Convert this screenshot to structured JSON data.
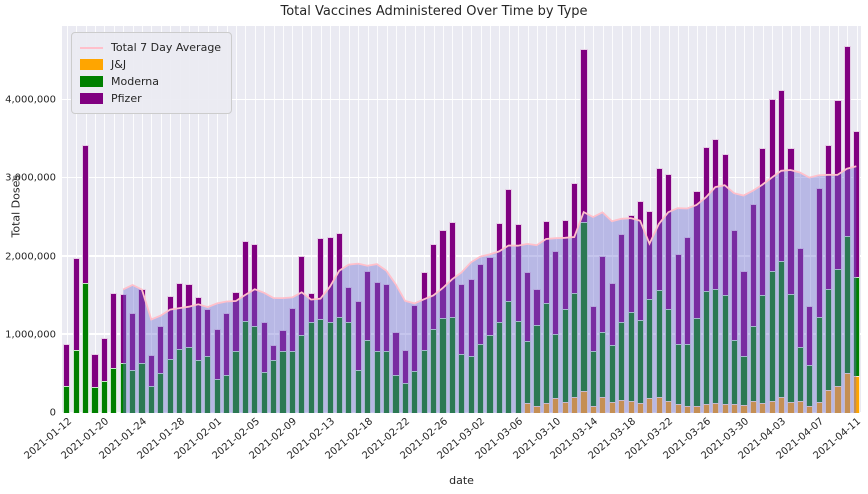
{
  "title": "Total Vaccines Administered Over Time by Type",
  "axes": {
    "x_label": "date",
    "y_label": "Total Doses",
    "y_max": 4950000,
    "y_ticks": [
      {
        "label": "0",
        "value": 0
      },
      {
        "label": "1,000,000",
        "value": 1000000
      },
      {
        "label": "2,000,000",
        "value": 2000000
      },
      {
        "label": "3,000,000",
        "value": 3000000
      },
      {
        "label": "4,000,000",
        "value": 4000000
      }
    ]
  },
  "legend": [
    {
      "label": "Total 7 Day Average",
      "color": "#ffc0cb",
      "shape": "line"
    },
    {
      "label": "J&J",
      "color": "#ffa500",
      "shape": "box"
    },
    {
      "label": "Moderna",
      "color": "#008000",
      "shape": "box"
    },
    {
      "label": "Pfizer",
      "color": "#800080",
      "shape": "box"
    }
  ],
  "colors": {
    "plot_bg": "#eaeaf2",
    "grid": "#ffffff",
    "avg_fill": "rgba(110,110,210,0.40)",
    "avg_line": "#ffc0cb"
  },
  "chart_data": {
    "type": "bar",
    "stacked": true,
    "title": "Total Vaccines Administered Over Time by Type",
    "xlabel": "date",
    "ylabel": "Total Doses",
    "ylim": [
      0,
      4950000
    ],
    "legend_position": "upper left",
    "grid": true,
    "tick_every": 4,
    "x": [
      "2021-01-12",
      "2021-01-14",
      "2021-01-16",
      "2021-01-18",
      "2021-01-20",
      "2021-01-21",
      "2021-01-22",
      "2021-01-23",
      "2021-01-24",
      "2021-01-25",
      "2021-01-26",
      "2021-01-27",
      "2021-01-28",
      "2021-01-29",
      "2021-01-30",
      "2021-01-31",
      "2021-02-01",
      "2021-02-02",
      "2021-02-03",
      "2021-02-04",
      "2021-02-05",
      "2021-02-06",
      "2021-02-07",
      "2021-02-08",
      "2021-02-09",
      "2021-02-10",
      "2021-02-11",
      "2021-02-12",
      "2021-02-13",
      "2021-02-15",
      "2021-02-16",
      "2021-02-17",
      "2021-02-18",
      "2021-02-19",
      "2021-02-20",
      "2021-02-21",
      "2021-02-22",
      "2021-02-23",
      "2021-02-24",
      "2021-02-25",
      "2021-02-26",
      "2021-02-27",
      "2021-02-28",
      "2021-03-01",
      "2021-03-02",
      "2021-03-03",
      "2021-03-04",
      "2021-03-05",
      "2021-03-06",
      "2021-03-07",
      "2021-03-08",
      "2021-03-09",
      "2021-03-10",
      "2021-03-11",
      "2021-03-12",
      "2021-03-13",
      "2021-03-14",
      "2021-03-15",
      "2021-03-16",
      "2021-03-17",
      "2021-03-18",
      "2021-03-19",
      "2021-03-20",
      "2021-03-21",
      "2021-03-22",
      "2021-03-23",
      "2021-03-24",
      "2021-03-25",
      "2021-03-26",
      "2021-03-27",
      "2021-03-28",
      "2021-03-29",
      "2021-03-30",
      "2021-03-31",
      "2021-04-01",
      "2021-04-02",
      "2021-04-03",
      "2021-04-04",
      "2021-04-05",
      "2021-04-06",
      "2021-04-07",
      "2021-04-08",
      "2021-04-09",
      "2021-04-10",
      "2021-04-11"
    ],
    "series": [
      {
        "name": "J&J",
        "color": "#ffa500",
        "values": [
          0,
          0,
          0,
          0,
          0,
          0,
          0,
          0,
          0,
          0,
          0,
          0,
          0,
          0,
          0,
          0,
          0,
          0,
          0,
          0,
          0,
          0,
          0,
          0,
          0,
          0,
          0,
          0,
          0,
          0,
          0,
          0,
          0,
          0,
          0,
          0,
          0,
          0,
          0,
          0,
          0,
          0,
          0,
          0,
          0,
          0,
          0,
          0,
          0,
          130000,
          90000,
          130000,
          190000,
          140000,
          200000,
          280000,
          90000,
          200000,
          140000,
          170000,
          150000,
          130000,
          190000,
          210000,
          150000,
          110000,
          90000,
          90000,
          110000,
          130000,
          110000,
          120000,
          100000,
          150000,
          130000,
          150000,
          210000,
          140000,
          150000,
          90000,
          140000,
          300000,
          340000,
          510000,
          470000
        ]
      },
      {
        "name": "Moderna",
        "color": "#008000",
        "values": [
          340000,
          810000,
          1660000,
          330000,
          410000,
          580000,
          640000,
          550000,
          640000,
          340000,
          510000,
          690000,
          820000,
          840000,
          680000,
          730000,
          440000,
          490000,
          790000,
          1180000,
          1110000,
          520000,
          680000,
          790000,
          790000,
          1000000,
          1170000,
          1200000,
          1160000,
          1230000,
          1160000,
          550000,
          940000,
          790000,
          790000,
          480000,
          390000,
          540000,
          810000,
          1070000,
          1210000,
          1230000,
          750000,
          730000,
          880000,
          1000000,
          1170000,
          1430000,
          1180000,
          790000,
          1030000,
          1280000,
          820000,
          1190000,
          1330000,
          2160000,
          700000,
          840000,
          730000,
          1000000,
          1140000,
          1060000,
          1270000,
          1360000,
          1180000,
          770000,
          790000,
          1130000,
          1450000,
          1460000,
          1400000,
          820000,
          630000,
          960000,
          1380000,
          1670000,
          1740000,
          1380000,
          700000,
          530000,
          1090000,
          1280000,
          1500000,
          1760000,
          1265000
        ]
      },
      {
        "name": "Pfizer",
        "color": "#800080",
        "values": [
          540000,
          1170000,
          1770000,
          430000,
          550000,
          950000,
          880000,
          730000,
          940000,
          400000,
          600000,
          810000,
          840000,
          810000,
          810000,
          600000,
          630000,
          790000,
          760000,
          1020000,
          1050000,
          650000,
          190000,
          270000,
          550000,
          1010000,
          370000,
          1040000,
          1090000,
          1070000,
          450000,
          880000,
          880000,
          890000,
          860000,
          560000,
          420000,
          840000,
          990000,
          1090000,
          1130000,
          1210000,
          900000,
          980000,
          1020000,
          1000000,
          1260000,
          1440000,
          1240000,
          890000,
          470000,
          1050000,
          1060000,
          1140000,
          1410000,
          2210000,
          580000,
          970000,
          790000,
          1120000,
          1240000,
          1520000,
          1130000,
          1570000,
          1730000,
          1150000,
          1370000,
          1620000,
          1840000,
          1920000,
          1800000,
          1400000,
          1090000,
          1570000,
          1875000,
          2200000,
          2180000,
          1865000,
          1260000,
          750000,
          1650000,
          1850000,
          2170000,
          2420000,
          1875000
        ]
      }
    ],
    "overlay": {
      "name": "Total 7 Day Average",
      "type": "rolling_mean_of_total",
      "window": 7,
      "start_index": 6,
      "line_color": "#ffc0cb",
      "fill_color": "rgba(110,110,210,0.40)"
    }
  }
}
